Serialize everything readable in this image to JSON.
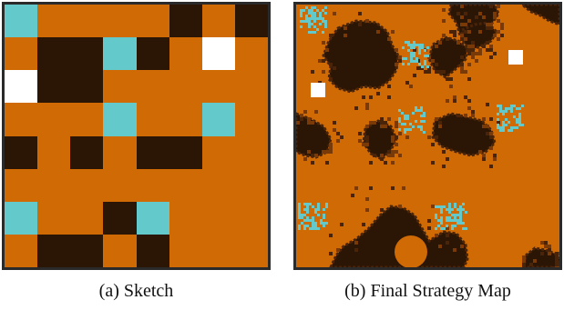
{
  "colors": {
    "ground": "#cf6a05",
    "dark": "#2b1505",
    "water": "#63c9cb",
    "white": "#ffffff",
    "dark_edge": "#4a2408",
    "speck": "#7a3a08"
  },
  "sketch": {
    "caption": "(a) Sketch",
    "legend_codes": {
      "o": "ground",
      "d": "dark",
      "c": "water",
      "w": "white"
    },
    "grid": [
      [
        "c",
        "o",
        "o",
        "o",
        "o",
        "d",
        "o",
        "d"
      ],
      [
        "o",
        "d",
        "d",
        "c",
        "d",
        "o",
        "w",
        "o"
      ],
      [
        "w",
        "d",
        "d",
        "o",
        "o",
        "o",
        "o",
        "o"
      ],
      [
        "o",
        "o",
        "o",
        "c",
        "o",
        "o",
        "c",
        "o"
      ],
      [
        "d",
        "o",
        "d",
        "o",
        "d",
        "d",
        "o",
        "o"
      ],
      [
        "o",
        "o",
        "o",
        "o",
        "o",
        "o",
        "o",
        "o"
      ],
      [
        "c",
        "o",
        "o",
        "d",
        "c",
        "o",
        "o",
        "o"
      ],
      [
        "o",
        "d",
        "d",
        "o",
        "d",
        "o",
        "o",
        "o"
      ]
    ]
  },
  "map": {
    "caption": "(b) Final Strategy Map",
    "tile_icons": [
      "water-cluster-icon",
      "dark-blob-icon",
      "white-square-icon"
    ]
  }
}
